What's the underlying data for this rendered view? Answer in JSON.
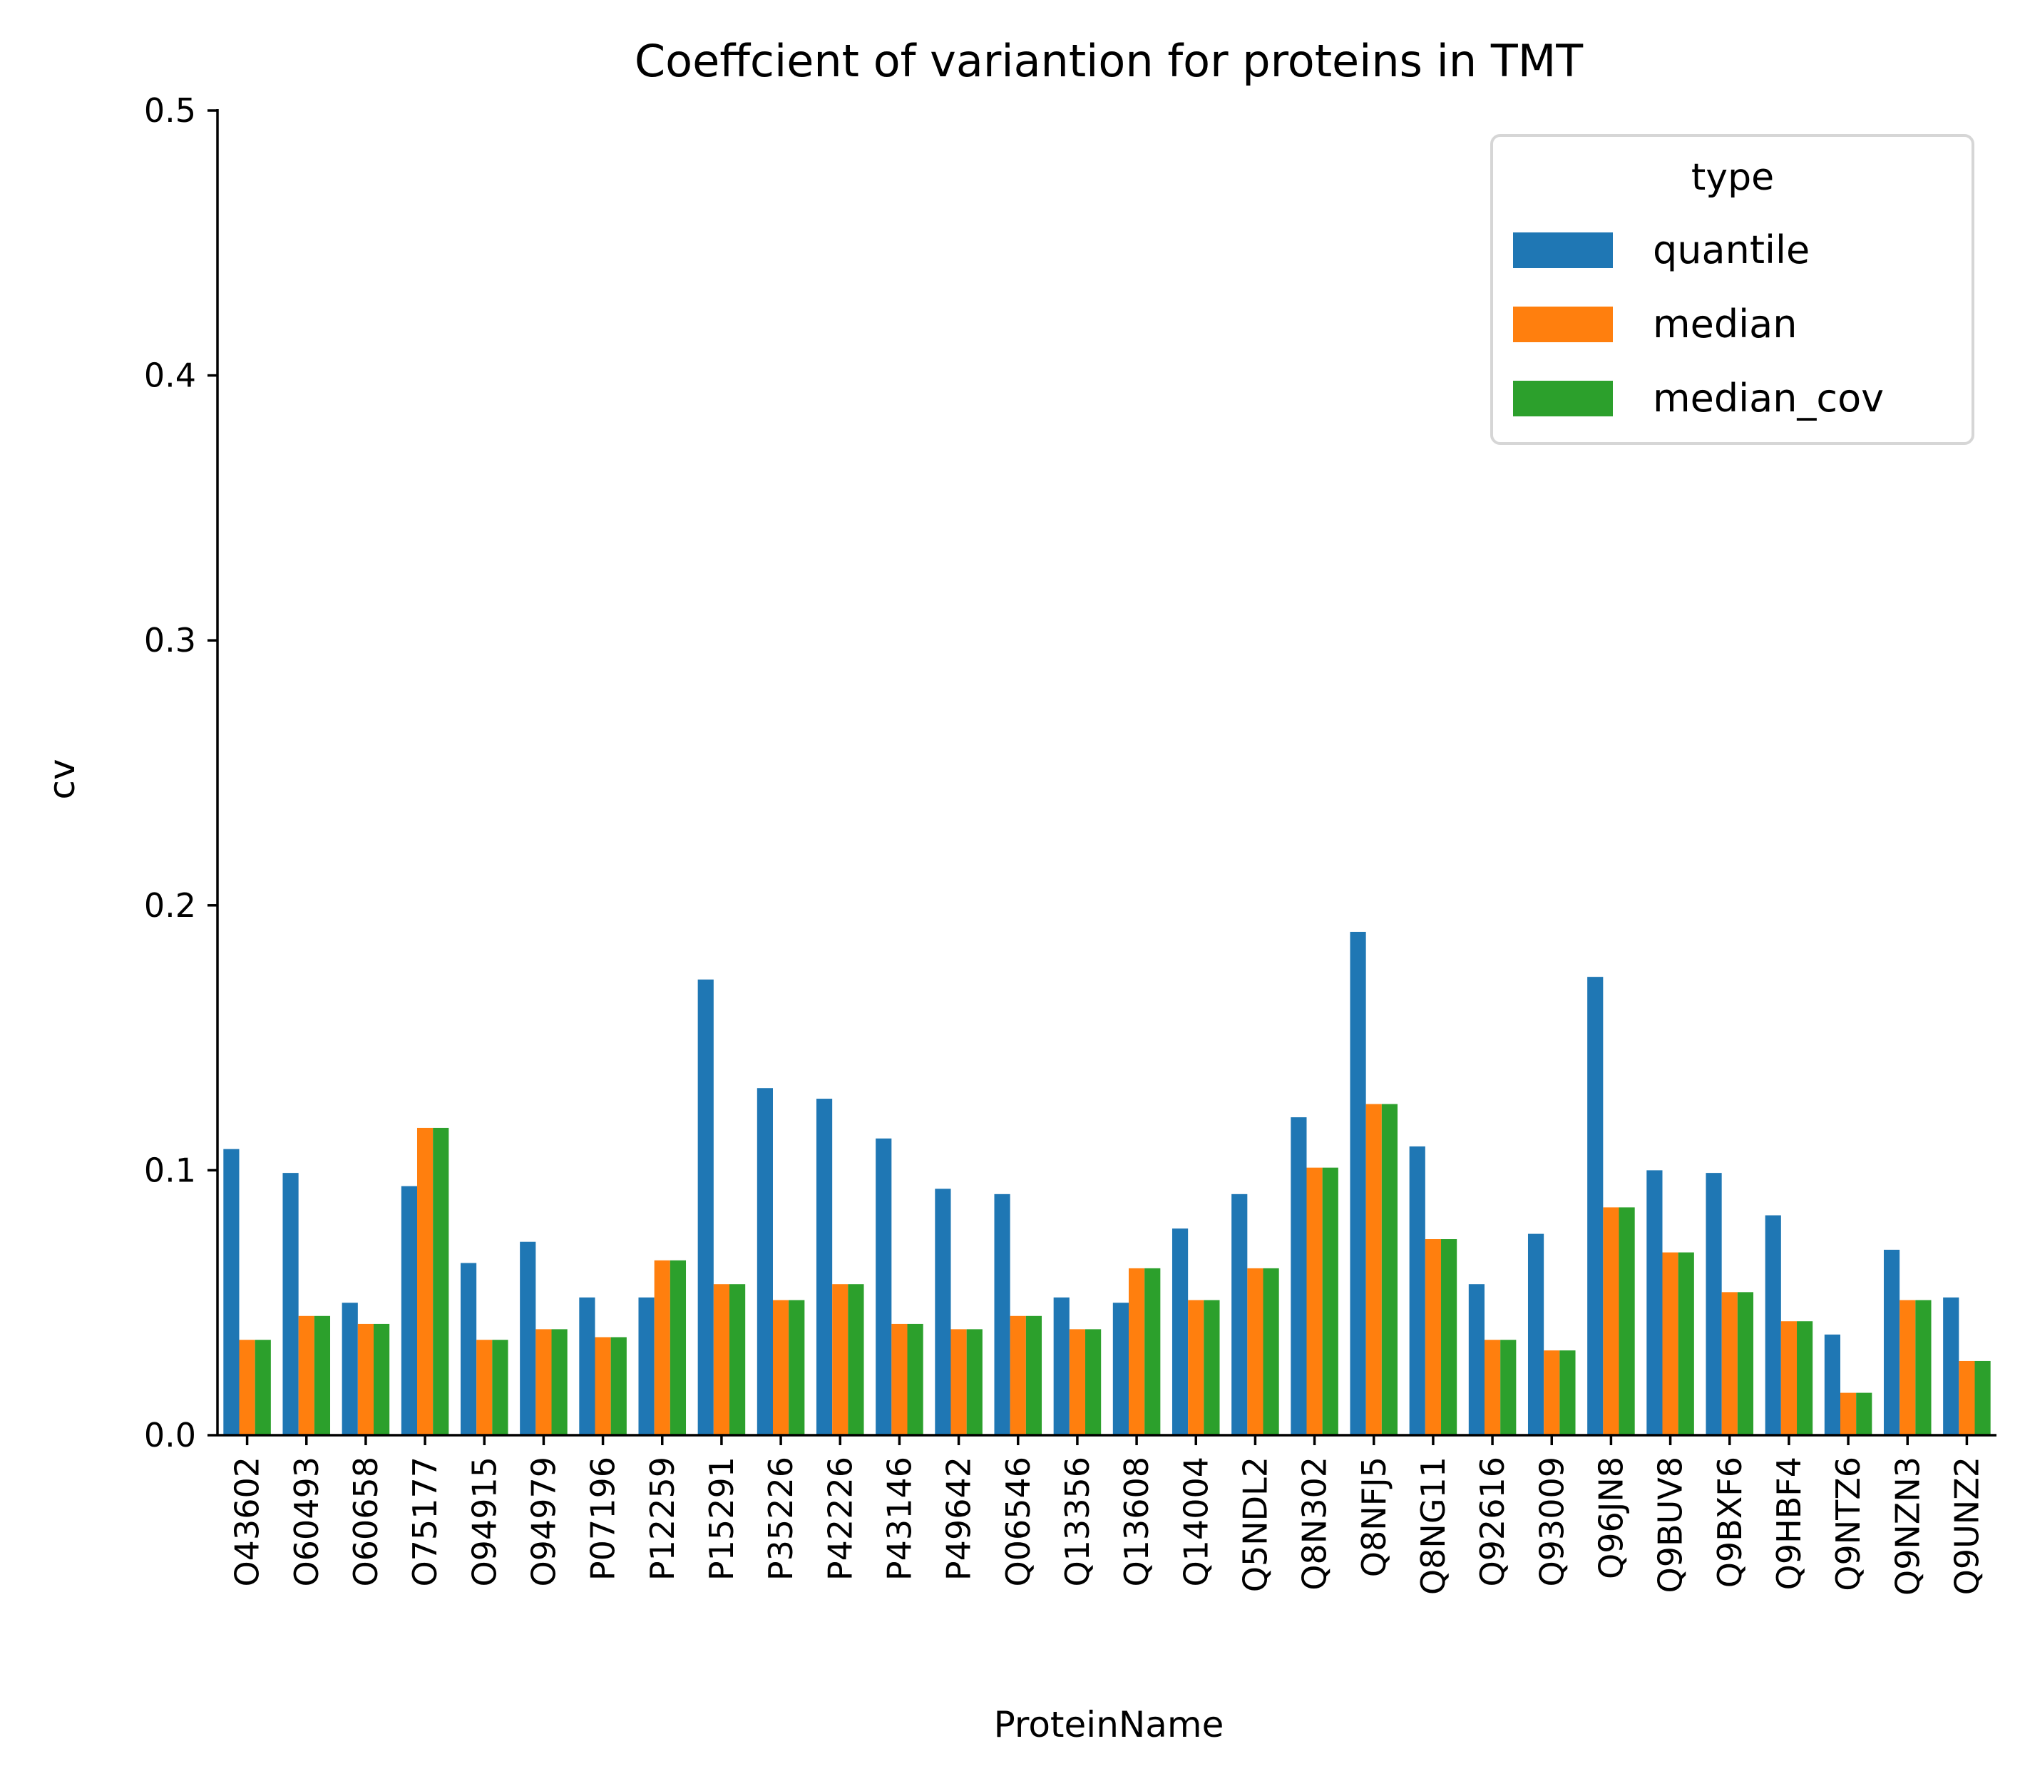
{
  "chart_data": {
    "type": "bar",
    "title": "Coeffcient of variantion for proteins in TMT",
    "xlabel": "ProteinName",
    "ylabel": "cv",
    "ylim": [
      0,
      0.5
    ],
    "yticks": [
      "0.0",
      "0.1",
      "0.2",
      "0.3",
      "0.4",
      "0.5"
    ],
    "grid": false,
    "legend": {
      "title": "type",
      "placement": "top-right"
    },
    "categories": [
      "O43602",
      "O60493",
      "O60658",
      "O75177",
      "O94915",
      "O94979",
      "P07196",
      "P12259",
      "P15291",
      "P35226",
      "P42226",
      "P43146",
      "P49642",
      "Q06546",
      "Q13356",
      "Q13608",
      "Q14004",
      "Q5NDL2",
      "Q8N302",
      "Q8NFJ5",
      "Q8NG11",
      "Q92616",
      "Q93009",
      "Q96JN8",
      "Q9BUV8",
      "Q9BXF6",
      "Q9HBF4",
      "Q9NTZ6",
      "Q9NZN3",
      "Q9UNZ2"
    ],
    "series": [
      {
        "name": "quantile",
        "color": "#1f77b4",
        "values": [
          0.108,
          0.099,
          0.05,
          0.094,
          0.065,
          0.073,
          0.052,
          0.052,
          0.172,
          0.131,
          0.127,
          0.112,
          0.093,
          0.091,
          0.052,
          0.05,
          0.078,
          0.091,
          0.12,
          0.19,
          0.109,
          0.057,
          0.076,
          0.173,
          0.1,
          0.099,
          0.083,
          0.038,
          0.07,
          0.052
        ]
      },
      {
        "name": "median",
        "color": "#ff7f0e",
        "values": [
          0.036,
          0.045,
          0.042,
          0.116,
          0.036,
          0.04,
          0.037,
          0.066,
          0.057,
          0.051,
          0.057,
          0.042,
          0.04,
          0.045,
          0.04,
          0.063,
          0.051,
          0.063,
          0.101,
          0.125,
          0.074,
          0.036,
          0.032,
          0.086,
          0.069,
          0.054,
          0.043,
          0.016,
          0.051,
          0.028
        ]
      },
      {
        "name": "median_cov",
        "color": "#2ca02c",
        "values": [
          0.036,
          0.045,
          0.042,
          0.116,
          0.036,
          0.04,
          0.037,
          0.066,
          0.057,
          0.051,
          0.057,
          0.042,
          0.04,
          0.045,
          0.04,
          0.063,
          0.051,
          0.063,
          0.101,
          0.125,
          0.074,
          0.036,
          0.032,
          0.086,
          0.069,
          0.054,
          0.043,
          0.016,
          0.051,
          0.028
        ]
      }
    ]
  }
}
